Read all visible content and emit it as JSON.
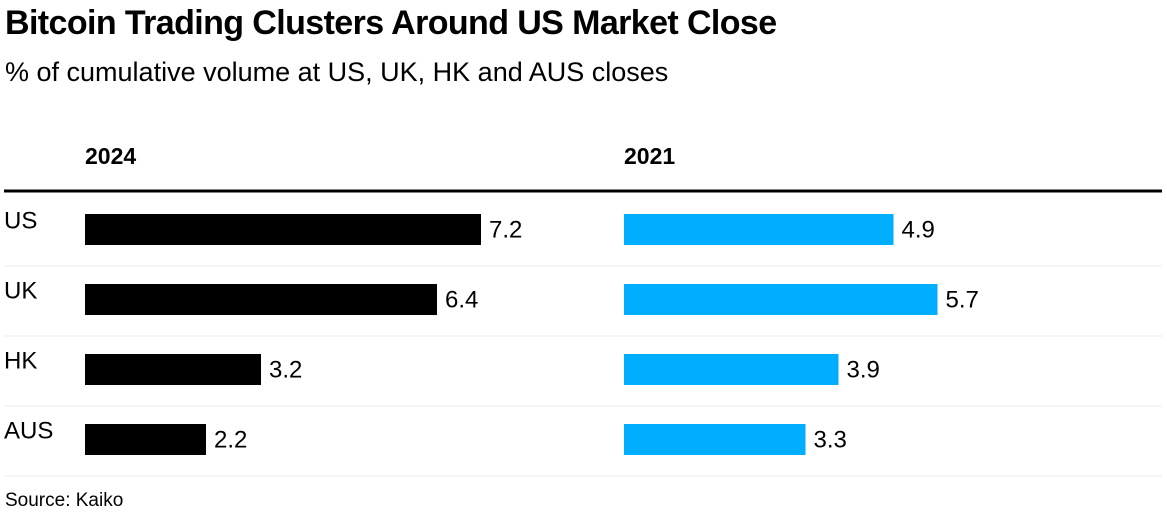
{
  "title": "Bitcoin Trading Clusters Around US Market Close",
  "subtitle": "% of cumulative volume at US, UK, HK and AUS closes",
  "source": "Source: Kaiko",
  "chart_data": [
    {
      "type": "bar",
      "orientation": "horizontal",
      "title": "2024",
      "categories": [
        "US",
        "UK",
        "HK",
        "AUS"
      ],
      "values": [
        7.2,
        6.4,
        3.2,
        2.2
      ],
      "labels": [
        "7.2",
        "6.4",
        "3.2",
        "2.2"
      ],
      "color": "#000000",
      "xlim": [
        0,
        7.2
      ]
    },
    {
      "type": "bar",
      "orientation": "horizontal",
      "title": "2021",
      "categories": [
        "US",
        "UK",
        "HK",
        "AUS"
      ],
      "values": [
        4.9,
        5.7,
        3.9,
        3.3
      ],
      "labels": [
        "4.9",
        "5.7",
        "3.9",
        "3.3"
      ],
      "color": "#00aeff",
      "xlim": [
        0,
        7.2
      ]
    }
  ]
}
